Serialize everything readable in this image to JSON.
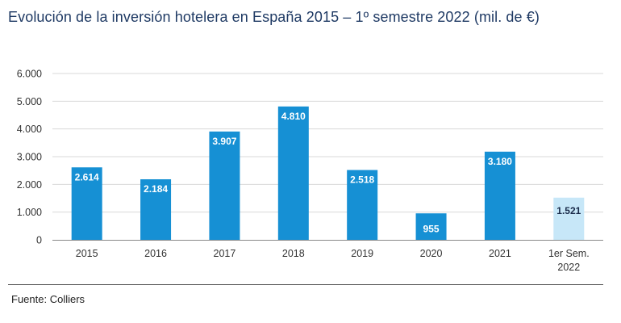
{
  "chart_title": "Evolución de la inversión hotelera en España 2015 – 1º semestre 2022 (mil. de €)",
  "source": "Fuente: Colliers",
  "colors": {
    "bar": "#1690d4",
    "bar_light": "#c7e7f8",
    "grid": "#d9d9d9",
    "axis": "#888888",
    "title": "#1f3a64"
  },
  "chart_data": {
    "type": "bar",
    "title": "Evolución de la inversión hotelera en España 2015 – 1º semestre 2022 (mil. de €)",
    "xlabel": "",
    "ylabel": "",
    "ylim": [
      0,
      6000
    ],
    "grid": true,
    "yticks": [
      "0",
      "1.000",
      "2.000",
      "3.000",
      "4.000",
      "5.000",
      "6.000"
    ],
    "categories": [
      [
        "2015"
      ],
      [
        "2016"
      ],
      [
        "2017"
      ],
      [
        "2018"
      ],
      [
        "2019"
      ],
      [
        "2020"
      ],
      [
        "2021"
      ],
      [
        "1er Sem.",
        "2022"
      ]
    ],
    "values": [
      2614,
      2184,
      3907,
      4810,
      2518,
      955,
      3180,
      1521
    ],
    "data_labels": [
      "2.614",
      "2.184",
      "3.907",
      "4.810",
      "2.518",
      "955",
      "3.180",
      "1.521"
    ],
    "highlight": [
      false,
      false,
      false,
      false,
      false,
      false,
      false,
      true
    ]
  }
}
